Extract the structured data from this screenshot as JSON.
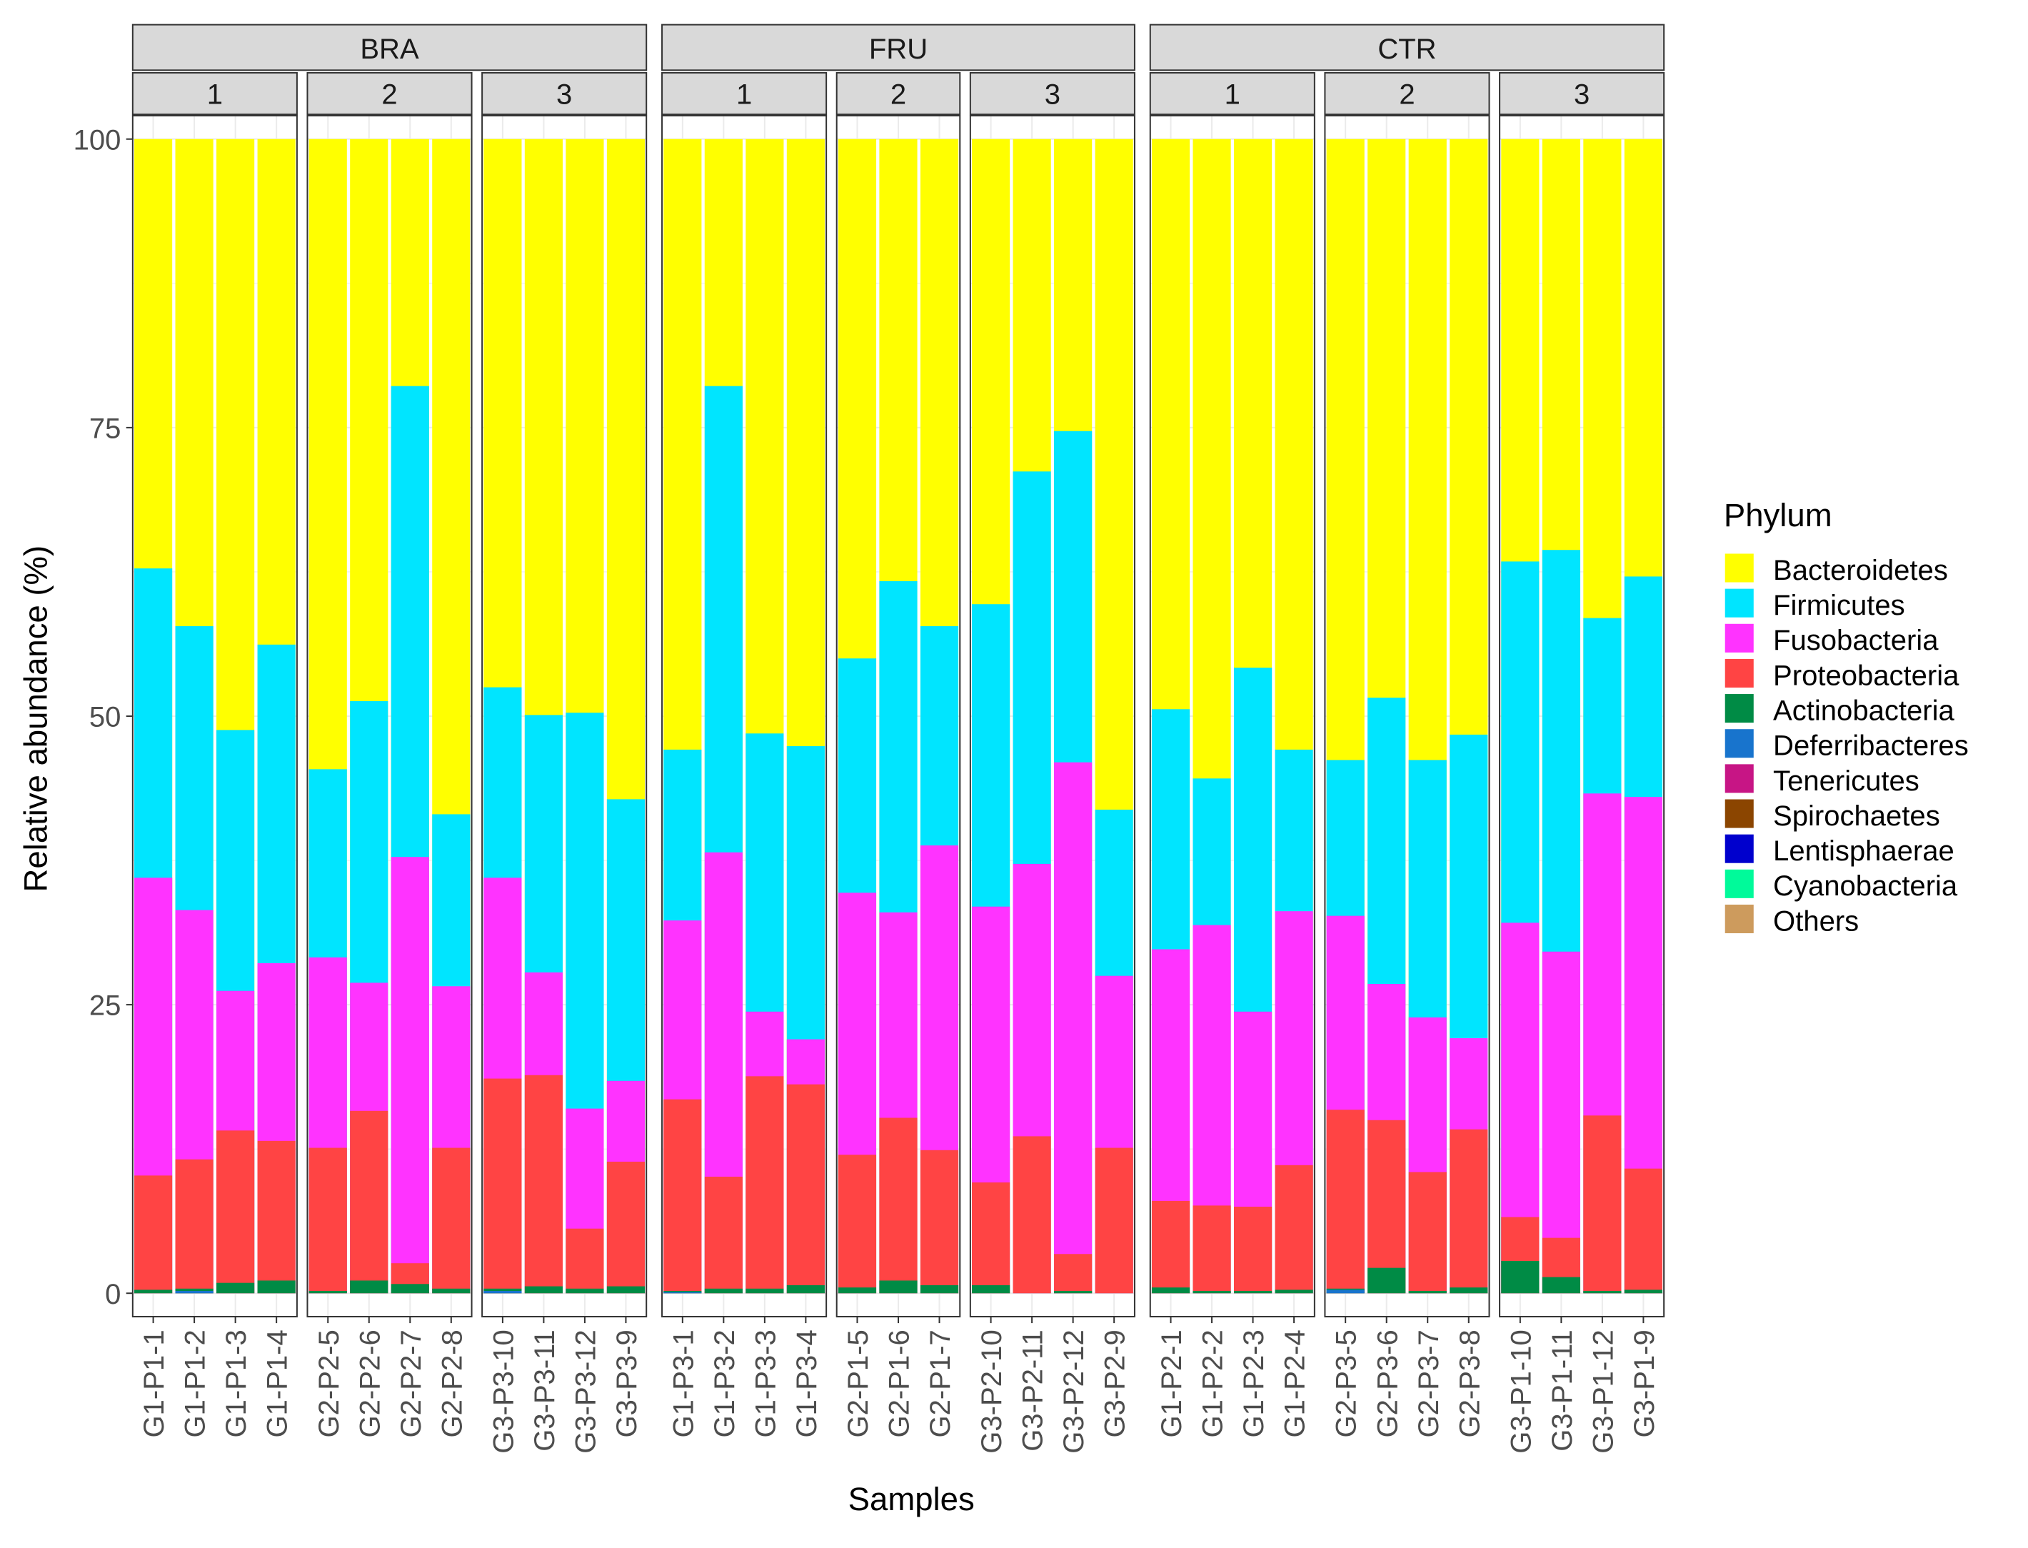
{
  "chart_data": {
    "type": "bar",
    "stacked": true,
    "xlabel": "Samples",
    "ylabel": "Relative abundance (%)",
    "ylim": [
      0,
      100
    ],
    "yticks": [
      "0",
      "25",
      "50",
      "75",
      "100"
    ],
    "legend": {
      "title": "Phylum",
      "position": "right"
    },
    "series": [
      {
        "name": "Bacteroidetes",
        "color": "#FFFF00"
      },
      {
        "name": "Firmicutes",
        "color": "#00E5FF"
      },
      {
        "name": "Fusobacteria",
        "color": "#FF33FF"
      },
      {
        "name": "Proteobacteria",
        "color": "#FF4444"
      },
      {
        "name": "Actinobacteria",
        "color": "#008B45"
      },
      {
        "name": "Deferribacteres",
        "color": "#1874CD"
      },
      {
        "name": "Tenericutes",
        "color": "#C71585"
      },
      {
        "name": "Spirochaetes",
        "color": "#8B4500"
      },
      {
        "name": "Lentisphaerae",
        "color": "#0000CD"
      },
      {
        "name": "Cyanobacteria",
        "color": "#00FA9A"
      },
      {
        "name": "Others",
        "color": "#CD9B5D"
      }
    ],
    "groups": [
      {
        "label": "BRA",
        "panels": [
          {
            "label": "1",
            "samples": [
              {
                "name": "G1-P1-1",
                "cumulative": {
                  "Firmicutes": 62.8,
                  "Fusobacteria": 36.0,
                  "Proteobacteria": 10.2,
                  "Actinobacteria": 0.3
                }
              },
              {
                "name": "G1-P1-2",
                "cumulative": {
                  "Firmicutes": 57.8,
                  "Fusobacteria": 33.2,
                  "Proteobacteria": 11.6,
                  "Actinobacteria": 0.4,
                  "Deferribacteres": 0.2
                }
              },
              {
                "name": "G1-P1-3",
                "cumulative": {
                  "Firmicutes": 48.8,
                  "Fusobacteria": 26.2,
                  "Proteobacteria": 14.1,
                  "Actinobacteria": 0.9
                }
              },
              {
                "name": "G1-P1-4",
                "cumulative": {
                  "Firmicutes": 56.2,
                  "Fusobacteria": 28.6,
                  "Proteobacteria": 13.2,
                  "Actinobacteria": 1.1
                }
              }
            ]
          },
          {
            "label": "2",
            "samples": [
              {
                "name": "G2-P2-5",
                "cumulative": {
                  "Firmicutes": 45.4,
                  "Fusobacteria": 29.1,
                  "Proteobacteria": 12.6,
                  "Actinobacteria": 0.2
                }
              },
              {
                "name": "G2-P2-6",
                "cumulative": {
                  "Firmicutes": 51.3,
                  "Fusobacteria": 26.9,
                  "Proteobacteria": 15.8,
                  "Actinobacteria": 1.1
                }
              },
              {
                "name": "G2-P2-7",
                "cumulative": {
                  "Firmicutes": 78.6,
                  "Fusobacteria": 37.8,
                  "Proteobacteria": 2.6,
                  "Actinobacteria": 0.8
                }
              },
              {
                "name": "G2-P2-8",
                "cumulative": {
                  "Firmicutes": 41.5,
                  "Fusobacteria": 26.6,
                  "Proteobacteria": 12.6,
                  "Actinobacteria": 0.4
                }
              }
            ]
          },
          {
            "label": "3",
            "samples": [
              {
                "name": "G3-P3-10",
                "cumulative": {
                  "Firmicutes": 52.5,
                  "Fusobacteria": 36.0,
                  "Proteobacteria": 18.6,
                  "Actinobacteria": 0.4,
                  "Deferribacteres": 0.2
                }
              },
              {
                "name": "G3-P3-11",
                "cumulative": {
                  "Firmicutes": 50.1,
                  "Fusobacteria": 27.8,
                  "Proteobacteria": 18.9,
                  "Actinobacteria": 0.6
                }
              },
              {
                "name": "G3-P3-12",
                "cumulative": {
                  "Firmicutes": 50.3,
                  "Fusobacteria": 16.0,
                  "Proteobacteria": 5.6,
                  "Actinobacteria": 0.4
                }
              },
              {
                "name": "G3-P3-9",
                "cumulative": {
                  "Firmicutes": 42.8,
                  "Fusobacteria": 18.4,
                  "Proteobacteria": 11.4,
                  "Actinobacteria": 0.6
                }
              }
            ]
          }
        ]
      },
      {
        "label": "FRU",
        "panels": [
          {
            "label": "1",
            "samples": [
              {
                "name": "G1-P3-1",
                "cumulative": {
                  "Firmicutes": 47.1,
                  "Fusobacteria": 32.3,
                  "Proteobacteria": 16.8,
                  "Actinobacteria": 0.2,
                  "Deferribacteres": 0.1
                }
              },
              {
                "name": "G1-P3-2",
                "cumulative": {
                  "Firmicutes": 78.6,
                  "Fusobacteria": 38.2,
                  "Proteobacteria": 10.1,
                  "Actinobacteria": 0.4
                }
              },
              {
                "name": "G1-P3-3",
                "cumulative": {
                  "Firmicutes": 48.5,
                  "Fusobacteria": 24.4,
                  "Proteobacteria": 18.8,
                  "Actinobacteria": 0.4
                }
              },
              {
                "name": "G1-P3-4",
                "cumulative": {
                  "Firmicutes": 47.4,
                  "Fusobacteria": 22.0,
                  "Proteobacteria": 18.1,
                  "Actinobacteria": 0.7
                }
              }
            ]
          },
          {
            "label": "2",
            "samples": [
              {
                "name": "G2-P1-5",
                "cumulative": {
                  "Firmicutes": 55.0,
                  "Fusobacteria": 34.7,
                  "Proteobacteria": 12.0,
                  "Actinobacteria": 0.5
                }
              },
              {
                "name": "G2-P1-6",
                "cumulative": {
                  "Firmicutes": 61.7,
                  "Fusobacteria": 33.0,
                  "Proteobacteria": 15.2,
                  "Actinobacteria": 1.1
                }
              },
              {
                "name": "G2-P1-7",
                "cumulative": {
                  "Firmicutes": 57.8,
                  "Fusobacteria": 38.8,
                  "Proteobacteria": 12.4,
                  "Actinobacteria": 0.7
                }
              }
            ]
          },
          {
            "label": "3",
            "samples": [
              {
                "name": "G3-P2-10",
                "cumulative": {
                  "Firmicutes": 59.7,
                  "Fusobacteria": 33.5,
                  "Proteobacteria": 9.6,
                  "Actinobacteria": 0.7
                }
              },
              {
                "name": "G3-P2-11",
                "cumulative": {
                  "Firmicutes": 71.2,
                  "Fusobacteria": 37.2,
                  "Proteobacteria": 13.6
                }
              },
              {
                "name": "G3-P2-12",
                "cumulative": {
                  "Firmicutes": 74.7,
                  "Fusobacteria": 46.0,
                  "Proteobacteria": 3.4,
                  "Actinobacteria": 0.2
                }
              },
              {
                "name": "G3-P2-9",
                "cumulative": {
                  "Firmicutes": 41.9,
                  "Fusobacteria": 27.5,
                  "Proteobacteria": 12.6
                }
              }
            ]
          }
        ]
      },
      {
        "label": "CTR",
        "panels": [
          {
            "label": "1",
            "samples": [
              {
                "name": "G1-P2-1",
                "cumulative": {
                  "Firmicutes": 50.6,
                  "Fusobacteria": 29.8,
                  "Proteobacteria": 8.0,
                  "Actinobacteria": 0.5
                }
              },
              {
                "name": "G1-P2-2",
                "cumulative": {
                  "Firmicutes": 44.6,
                  "Fusobacteria": 31.9,
                  "Proteobacteria": 7.6,
                  "Actinobacteria": 0.2
                }
              },
              {
                "name": "G1-P2-3",
                "cumulative": {
                  "Firmicutes": 54.2,
                  "Fusobacteria": 24.4,
                  "Proteobacteria": 7.5,
                  "Actinobacteria": 0.2
                }
              },
              {
                "name": "G1-P2-4",
                "cumulative": {
                  "Firmicutes": 47.1,
                  "Fusobacteria": 33.1,
                  "Proteobacteria": 11.1,
                  "Actinobacteria": 0.3
                }
              }
            ]
          },
          {
            "label": "2",
            "samples": [
              {
                "name": "G2-P3-5",
                "cumulative": {
                  "Firmicutes": 46.2,
                  "Fusobacteria": 32.7,
                  "Proteobacteria": 15.9,
                  "Actinobacteria": 0.4,
                  "Deferribacteres": 0.3
                }
              },
              {
                "name": "G2-P3-6",
                "cumulative": {
                  "Firmicutes": 51.6,
                  "Fusobacteria": 26.8,
                  "Proteobacteria": 15.0,
                  "Actinobacteria": 2.2
                }
              },
              {
                "name": "G2-P3-7",
                "cumulative": {
                  "Firmicutes": 46.2,
                  "Fusobacteria": 23.9,
                  "Proteobacteria": 10.5,
                  "Actinobacteria": 0.2
                }
              },
              {
                "name": "G2-P3-8",
                "cumulative": {
                  "Firmicutes": 48.4,
                  "Fusobacteria": 22.1,
                  "Proteobacteria": 14.2,
                  "Actinobacteria": 0.5
                }
              }
            ]
          },
          {
            "label": "3",
            "samples": [
              {
                "name": "G3-P1-10",
                "cumulative": {
                  "Firmicutes": 63.4,
                  "Fusobacteria": 32.1,
                  "Proteobacteria": 6.6,
                  "Actinobacteria": 2.8
                }
              },
              {
                "name": "G3-P1-11",
                "cumulative": {
                  "Firmicutes": 64.4,
                  "Fusobacteria": 29.6,
                  "Proteobacteria": 4.8,
                  "Actinobacteria": 1.4
                }
              },
              {
                "name": "G3-P1-12",
                "cumulative": {
                  "Firmicutes": 58.5,
                  "Fusobacteria": 43.3,
                  "Proteobacteria": 15.4,
                  "Actinobacteria": 0.2
                }
              },
              {
                "name": "G3-P1-9",
                "cumulative": {
                  "Firmicutes": 62.1,
                  "Fusobacteria": 43.0,
                  "Proteobacteria": 10.8,
                  "Actinobacteria": 0.3
                }
              }
            ]
          }
        ]
      }
    ]
  }
}
